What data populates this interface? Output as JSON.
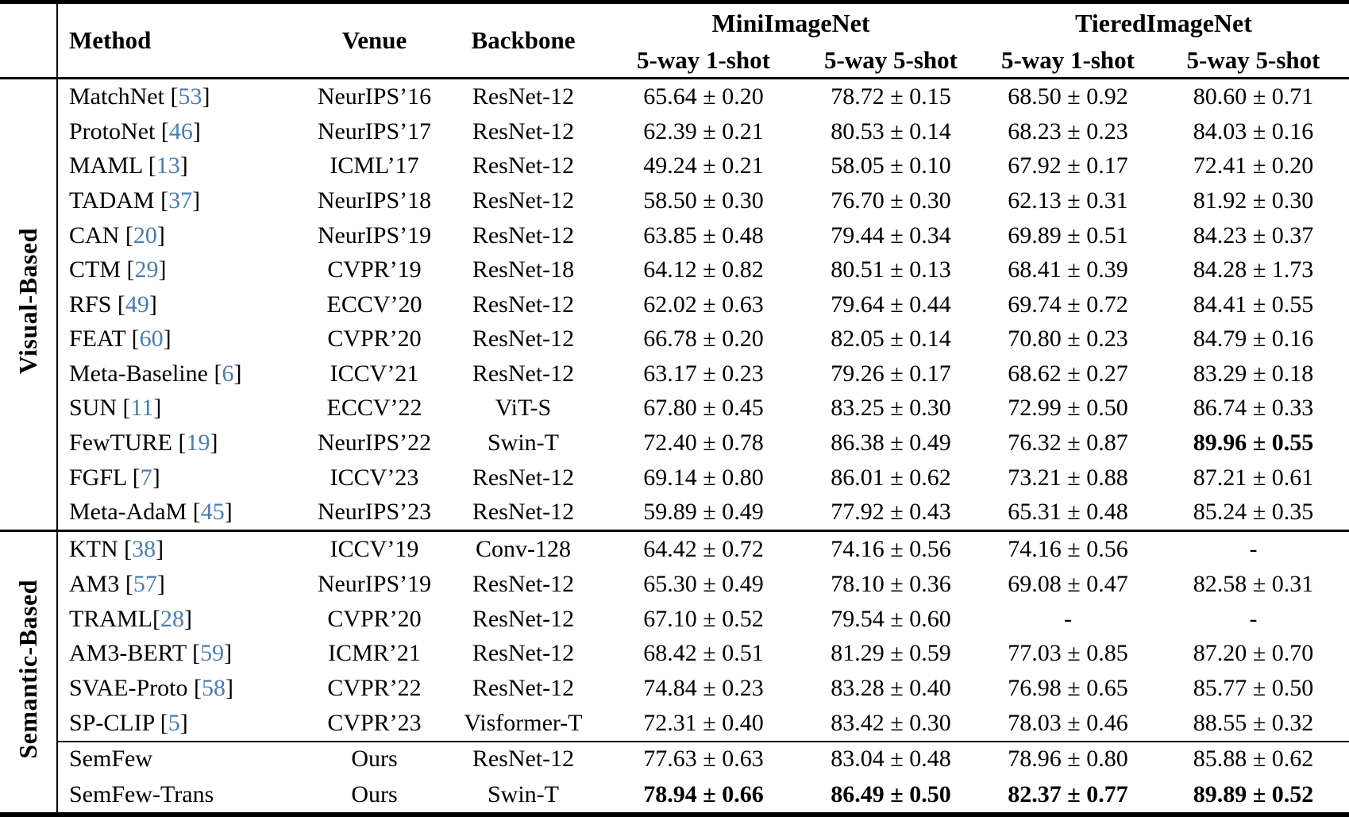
{
  "table": {
    "cite_open": "[",
    "cite_close": "]",
    "columns": {
      "method": "Method",
      "venue": "Venue",
      "backbone": "Backbone",
      "dataset1": "MiniImageNet",
      "dataset2": "TieredImageNet",
      "sub": [
        "5-way 1-shot",
        "5-way 5-shot",
        "5-way 1-shot",
        "5-way 5-shot"
      ]
    },
    "groups": [
      {
        "label": "Visual-Based",
        "rows": [
          {
            "method": "MatchNet ",
            "ref": "53",
            "venue": "NeurIPS’16",
            "backbone": "ResNet-12",
            "values": [
              "65.64 ± 0.20",
              "78.72 ± 0.15",
              "68.50 ± 0.92",
              "80.60 ± 0.71"
            ]
          },
          {
            "method": "ProtoNet ",
            "ref": "46",
            "venue": "NeurIPS’17",
            "backbone": "ResNet-12",
            "values": [
              "62.39 ± 0.21",
              "80.53 ± 0.14",
              "68.23 ± 0.23",
              "84.03 ± 0.16"
            ]
          },
          {
            "method": "MAML ",
            "ref": "13",
            "venue": "ICML’17",
            "backbone": "ResNet-12",
            "values": [
              "49.24 ± 0.21",
              "58.05 ± 0.10",
              "67.92 ± 0.17",
              "72.41 ± 0.20"
            ]
          },
          {
            "method": "TADAM ",
            "ref": "37",
            "venue": "NeurIPS’18",
            "backbone": "ResNet-12",
            "values": [
              "58.50 ± 0.30",
              "76.70 ± 0.30",
              "62.13 ± 0.31",
              "81.92 ± 0.30"
            ]
          },
          {
            "method": "CAN ",
            "ref": "20",
            "venue": "NeurIPS’19",
            "backbone": "ResNet-12",
            "values": [
              "63.85 ± 0.48",
              "79.44 ± 0.34",
              "69.89 ± 0.51",
              "84.23 ± 0.37"
            ]
          },
          {
            "method": "CTM ",
            "ref": "29",
            "venue": "CVPR’19",
            "backbone": "ResNet-18",
            "values": [
              "64.12 ± 0.82",
              "80.51 ± 0.13",
              "68.41 ± 0.39",
              "84.28 ± 1.73"
            ]
          },
          {
            "method": "RFS ",
            "ref": "49",
            "venue": "ECCV’20",
            "backbone": "ResNet-12",
            "values": [
              "62.02 ± 0.63",
              "79.64 ± 0.44",
              "69.74 ± 0.72",
              "84.41 ± 0.55"
            ]
          },
          {
            "method": "FEAT ",
            "ref": "60",
            "venue": "CVPR’20",
            "backbone": "ResNet-12",
            "values": [
              "66.78 ± 0.20",
              "82.05 ± 0.14",
              "70.80 ± 0.23",
              "84.79 ± 0.16"
            ]
          },
          {
            "method": "Meta-Baseline ",
            "ref": "6",
            "venue": "ICCV’21",
            "backbone": "ResNet-12",
            "values": [
              "63.17 ± 0.23",
              "79.26 ± 0.17",
              "68.62 ± 0.27",
              "83.29 ± 0.18"
            ]
          },
          {
            "method": "SUN ",
            "ref": "11",
            "venue": "ECCV’22",
            "backbone": "ViT-S",
            "values": [
              "67.80 ± 0.45",
              "83.25 ± 0.30",
              "72.99 ± 0.50",
              "86.74 ± 0.33"
            ]
          },
          {
            "method": "FewTURE ",
            "ref": "19",
            "venue": "NeurIPS’22",
            "backbone": "Swin-T",
            "values": [
              "72.40 ± 0.78",
              "86.38 ± 0.49",
              "76.32 ± 0.87",
              "89.96 ± 0.55"
            ],
            "bold": [
              false,
              false,
              false,
              true
            ]
          },
          {
            "method": "FGFL ",
            "ref": "7",
            "venue": "ICCV’23",
            "backbone": "ResNet-12",
            "values": [
              "69.14 ± 0.80",
              "86.01 ± 0.62",
              "73.21 ± 0.88",
              "87.21 ± 0.61"
            ]
          },
          {
            "method": "Meta-AdaM ",
            "ref": "45",
            "venue": "NeurIPS’23",
            "backbone": "ResNet-12",
            "values": [
              "59.89 ± 0.49",
              "77.92 ± 0.43",
              "65.31 ± 0.48",
              "85.24 ± 0.35"
            ]
          }
        ]
      },
      {
        "label": "Semantic-Based",
        "section_rule_above": true,
        "rows": [
          {
            "method": "KTN ",
            "ref": "38",
            "venue": "ICCV’19",
            "backbone": "Conv-128",
            "values": [
              "64.42 ± 0.72",
              "74.16 ± 0.56",
              "74.16 ± 0.56",
              "-"
            ]
          },
          {
            "method": "AM3 ",
            "ref": "57",
            "venue": "NeurIPS’19",
            "backbone": "ResNet-12",
            "values": [
              "65.30 ± 0.49",
              "78.10 ± 0.36",
              "69.08 ± 0.47",
              "82.58 ± 0.31"
            ]
          },
          {
            "method": "TRAML",
            "ref": "28",
            "venue": "CVPR’20",
            "backbone": "ResNet-12",
            "values": [
              "67.10 ± 0.52",
              "79.54 ± 0.60",
              "-",
              "-"
            ]
          },
          {
            "method": "AM3-BERT ",
            "ref": "59",
            "venue": "ICMR’21",
            "backbone": "ResNet-12",
            "values": [
              "68.42 ± 0.51",
              "81.29 ± 0.59",
              "77.03 ± 0.85",
              "87.20 ± 0.70"
            ]
          },
          {
            "method": "SVAE-Proto ",
            "ref": "58",
            "venue": "CVPR’22",
            "backbone": "ResNet-12",
            "values": [
              "74.84 ± 0.23",
              "83.28 ± 0.40",
              "76.98 ± 0.65",
              "85.77 ± 0.50"
            ]
          },
          {
            "method": "SP-CLIP ",
            "ref": "5",
            "venue": "CVPR’23",
            "backbone": "Visformer-T",
            "values": [
              "72.31 ± 0.40",
              "83.42 ± 0.30",
              "78.03 ± 0.46",
              "88.55 ± 0.32"
            ]
          },
          {
            "method": "SemFew",
            "ref": "",
            "divider_before": true,
            "venue": "Ours",
            "backbone": "ResNet-12",
            "values": [
              "77.63 ± 0.63",
              "83.04 ± 0.48",
              "78.96 ± 0.80",
              "85.88 ± 0.62"
            ]
          },
          {
            "method": "SemFew-Trans",
            "ref": "",
            "venue": "Ours",
            "backbone": "Swin-T",
            "values": [
              "78.94 ± 0.66",
              "86.49 ± 0.50",
              "82.37 ± 0.77",
              "89.89 ± 0.52"
            ],
            "bold": [
              true,
              true,
              true,
              true
            ]
          }
        ]
      }
    ]
  }
}
